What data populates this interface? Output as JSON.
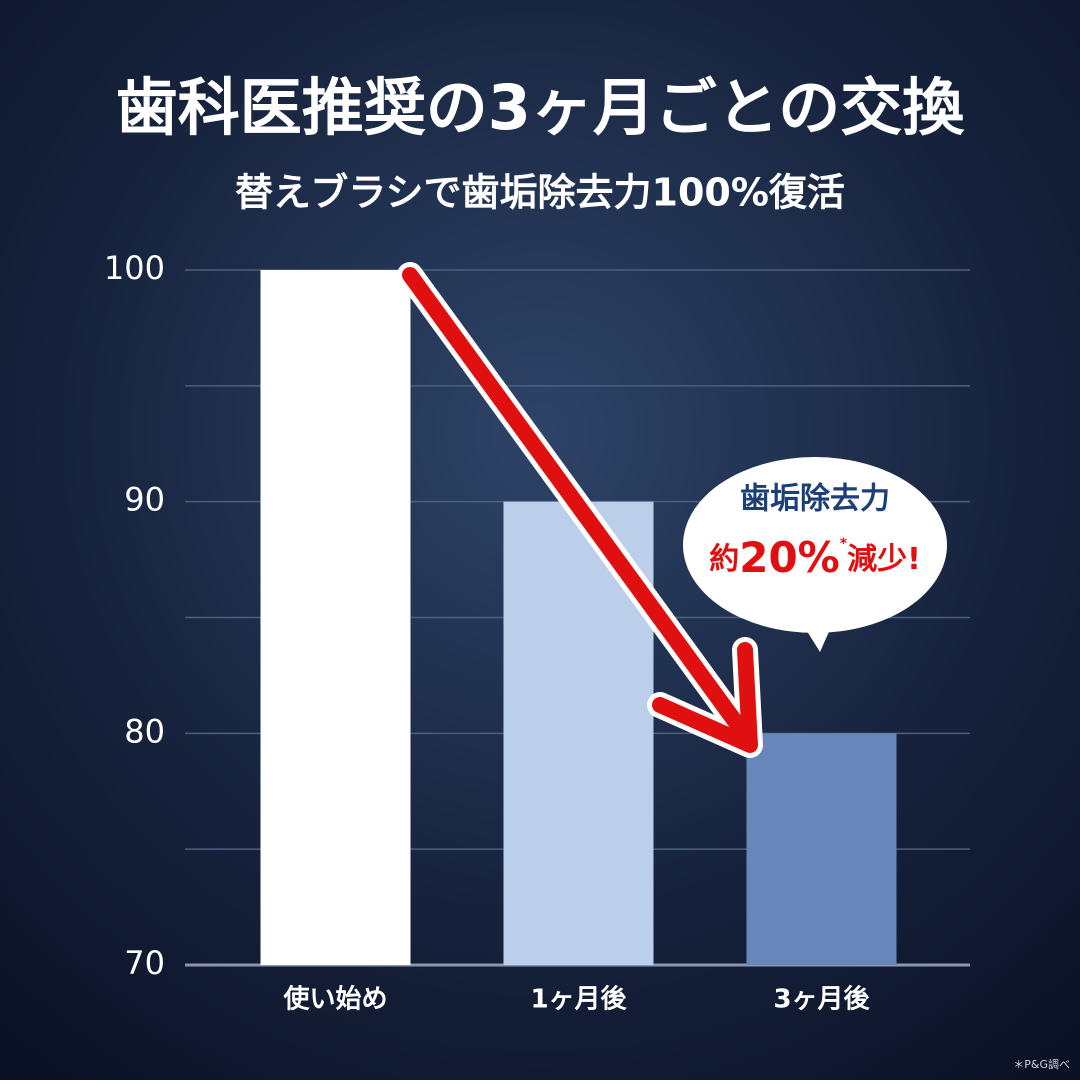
{
  "chart_data": {
    "type": "bar",
    "title": "歯科医推奨の3ヶ月ごとの交換",
    "subtitle": "替えブラシで歯垢除去力100%復活",
    "categories": [
      "使い始め",
      "1ヶ月後",
      "3ヶ月後"
    ],
    "values": [
      100,
      90,
      80
    ],
    "colors": [
      "#ffffff",
      "#bccfea",
      "#6787ba"
    ],
    "ylim": [
      70,
      100
    ],
    "yticks": [
      70,
      80,
      90,
      100
    ],
    "minor_grid": [
      75,
      85,
      95
    ],
    "grid": true,
    "annotation": {
      "line1": "歯垢除去力",
      "prefix": "約",
      "highlight": "20%",
      "mark": "*",
      "suffix": "減少!"
    },
    "footnote": "＊P&G調べ"
  }
}
